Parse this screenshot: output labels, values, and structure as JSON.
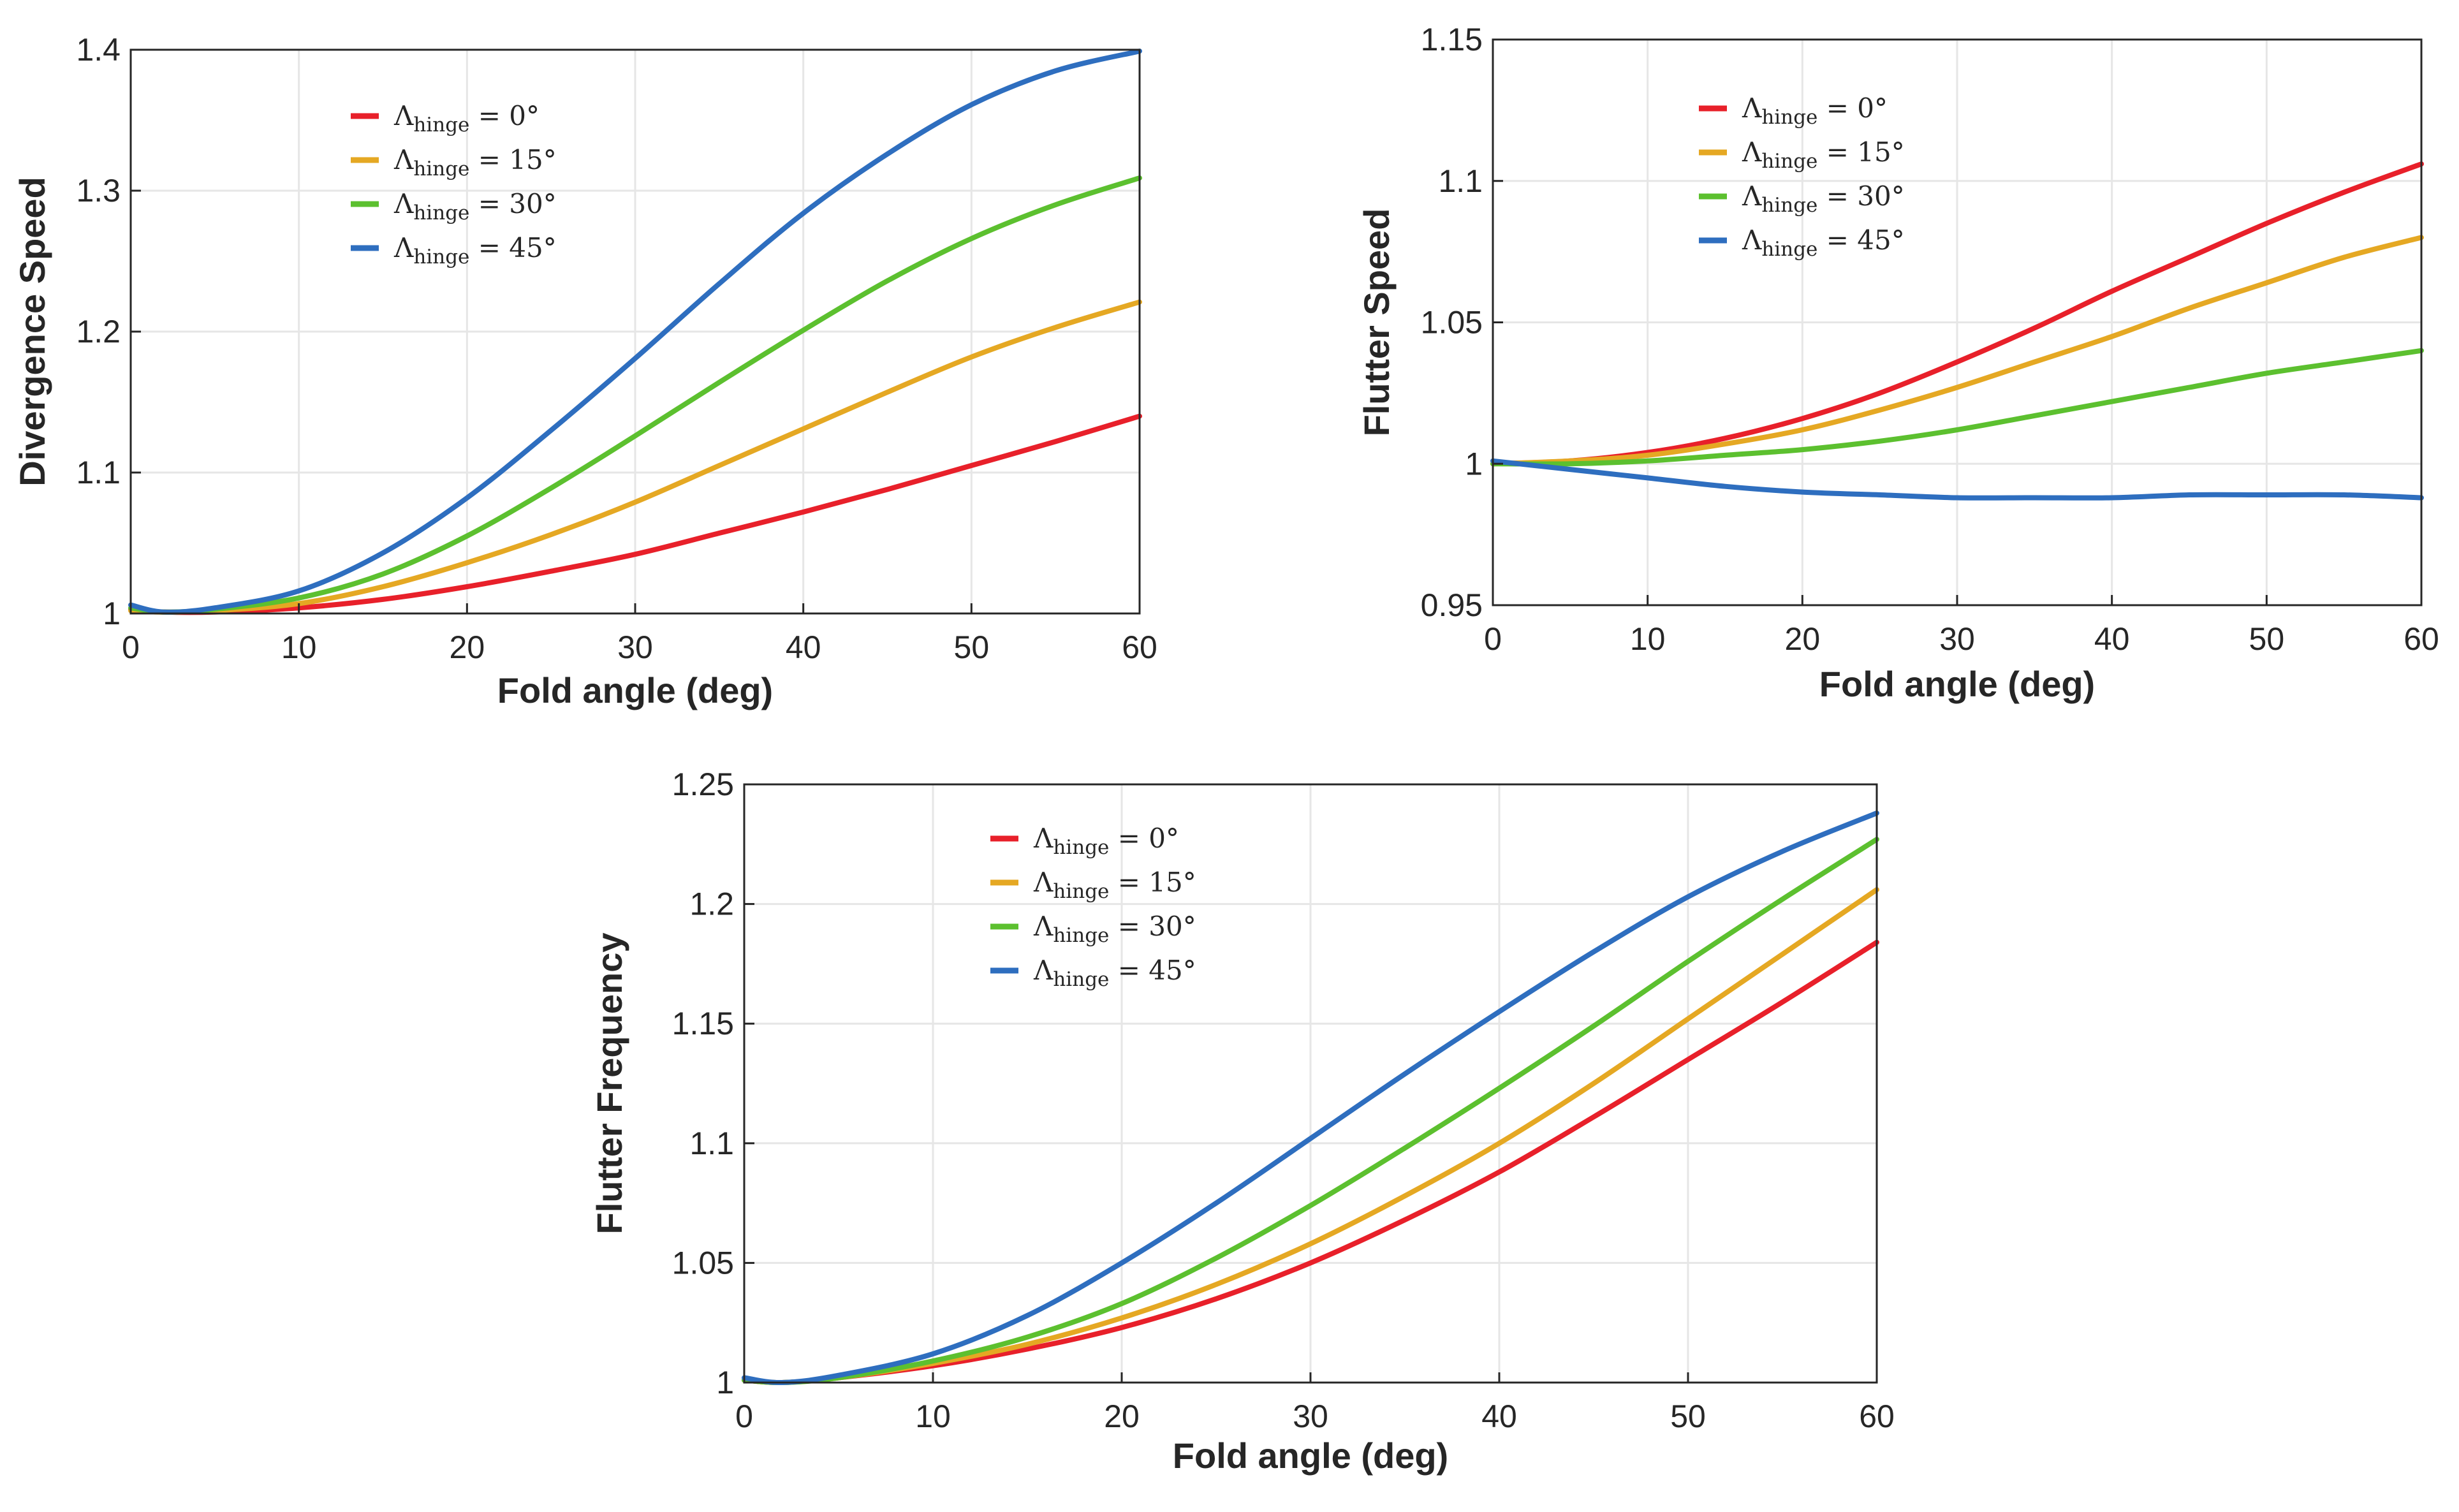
{
  "chart_data": [
    {
      "type": "line",
      "xlabel": "Fold angle (deg)",
      "ylabel": "Divergence Speed",
      "xlim": [
        0,
        60
      ],
      "ylim": [
        1,
        1.4
      ],
      "xticks": [
        0,
        10,
        20,
        30,
        40,
        50,
        60
      ],
      "yticks": [
        1,
        1.1,
        1.2,
        1.3,
        1.4
      ],
      "xtick_labels": [
        "0",
        "10",
        "20",
        "30",
        "40",
        "50",
        "60"
      ],
      "ytick_labels": [
        "1",
        "1.1",
        "1.2",
        "1.3",
        "1.4"
      ],
      "grid": true,
      "legend_position": "top-left",
      "x": [
        0,
        2,
        5,
        10,
        15,
        20,
        25,
        30,
        35,
        40,
        45,
        50,
        55,
        60
      ],
      "series": [
        {
          "name": "Λhinge = 0°",
          "name_main": "Λ",
          "name_sub": "hinge",
          "name_rest": " = 0°",
          "color": "#e8202a",
          "values": [
            1.003,
            1.001,
            1.001,
            1.004,
            1.01,
            1.019,
            1.03,
            1.042,
            1.057,
            1.072,
            1.088,
            1.105,
            1.122,
            1.14
          ]
        },
        {
          "name": "Λhinge = 15°",
          "name_main": "Λ",
          "name_sub": "hinge",
          "name_rest": " = 15°",
          "color": "#e5a823",
          "values": [
            1.002,
            1.001,
            1.002,
            1.007,
            1.019,
            1.036,
            1.056,
            1.079,
            1.105,
            1.131,
            1.157,
            1.182,
            1.203,
            1.221
          ]
        },
        {
          "name": "Λhinge = 30°",
          "name_main": "Λ",
          "name_sub": "hinge",
          "name_rest": " = 30°",
          "color": "#5cc02f",
          "values": [
            1.004,
            1.001,
            1.003,
            1.011,
            1.028,
            1.055,
            1.089,
            1.126,
            1.164,
            1.201,
            1.236,
            1.266,
            1.29,
            1.309
          ]
        },
        {
          "name": "Λhinge = 45°",
          "name_main": "Λ",
          "name_sub": "hinge",
          "name_rest": " = 45°",
          "color": "#2e6ebf",
          "values": [
            1.006,
            1.001,
            1.004,
            1.016,
            1.043,
            1.082,
            1.13,
            1.181,
            1.234,
            1.284,
            1.326,
            1.361,
            1.385,
            1.399
          ]
        }
      ]
    },
    {
      "type": "line",
      "xlabel": "Fold angle (deg)",
      "ylabel": "Flutter Speed",
      "xlim": [
        0,
        60
      ],
      "ylim": [
        0.95,
        1.15
      ],
      "xticks": [
        0,
        10,
        20,
        30,
        40,
        50,
        60
      ],
      "yticks": [
        0.95,
        1,
        1.05,
        1.1,
        1.15
      ],
      "xtick_labels": [
        "0",
        "10",
        "20",
        "30",
        "40",
        "50",
        "60"
      ],
      "ytick_labels": [
        "0.95",
        "1",
        "1.05",
        "1.1",
        "1.15"
      ],
      "grid": true,
      "legend_position": "top-left",
      "x": [
        0,
        5,
        10,
        15,
        20,
        25,
        30,
        35,
        40,
        45,
        50,
        55,
        60
      ],
      "series": [
        {
          "name": "Λhinge = 0°",
          "name_main": "Λ",
          "name_sub": "hinge",
          "name_rest": " = 0°",
          "color": "#e8202a",
          "values": [
            1.0,
            1.001,
            1.004,
            1.009,
            1.016,
            1.025,
            1.036,
            1.048,
            1.061,
            1.073,
            1.085,
            1.096,
            1.106
          ]
        },
        {
          "name": "Λhinge = 15°",
          "name_main": "Λ",
          "name_sub": "hinge",
          "name_rest": " = 15°",
          "color": "#e5a823",
          "values": [
            1.0,
            1.001,
            1.003,
            1.007,
            1.012,
            1.019,
            1.027,
            1.036,
            1.045,
            1.055,
            1.064,
            1.073,
            1.08
          ]
        },
        {
          "name": "Λhinge = 30°",
          "name_main": "Λ",
          "name_sub": "hinge",
          "name_rest": " = 30°",
          "color": "#5cc02f",
          "values": [
            1.0,
            1.0,
            1.001,
            1.003,
            1.005,
            1.008,
            1.012,
            1.017,
            1.022,
            1.027,
            1.032,
            1.036,
            1.04
          ]
        },
        {
          "name": "Λhinge = 45°",
          "name_main": "Λ",
          "name_sub": "hinge",
          "name_rest": " = 45°",
          "color": "#2e6ebf",
          "values": [
            1.001,
            0.998,
            0.995,
            0.992,
            0.99,
            0.989,
            0.988,
            0.988,
            0.988,
            0.989,
            0.989,
            0.989,
            0.988
          ]
        }
      ]
    },
    {
      "type": "line",
      "xlabel": "Fold angle (deg)",
      "ylabel": "Flutter Frequency",
      "xlim": [
        0,
        60
      ],
      "ylim": [
        1,
        1.25
      ],
      "xticks": [
        0,
        10,
        20,
        30,
        40,
        50,
        60
      ],
      "yticks": [
        1,
        1.05,
        1.1,
        1.15,
        1.2,
        1.25
      ],
      "xtick_labels": [
        "0",
        "10",
        "20",
        "30",
        "40",
        "50",
        "60"
      ],
      "ytick_labels": [
        "1",
        "1.05",
        "1.1",
        "1.15",
        "1.2",
        "1.25"
      ],
      "grid": true,
      "legend_position": "top-left",
      "x": [
        0,
        2,
        5,
        10,
        15,
        20,
        25,
        30,
        35,
        40,
        45,
        50,
        55,
        60
      ],
      "series": [
        {
          "name": "Λhinge = 0°",
          "name_main": "Λ",
          "name_sub": "hinge",
          "name_rest": " = 0°",
          "color": "#e8202a",
          "values": [
            1.001,
            1.0,
            1.002,
            1.007,
            1.014,
            1.023,
            1.035,
            1.05,
            1.068,
            1.088,
            1.111,
            1.135,
            1.159,
            1.184
          ]
        },
        {
          "name": "Λhinge = 15°",
          "name_main": "Λ",
          "name_sub": "hinge",
          "name_rest": " = 15°",
          "color": "#e5a823",
          "values": [
            1.001,
            1.0,
            1.002,
            1.008,
            1.016,
            1.027,
            1.041,
            1.058,
            1.078,
            1.1,
            1.125,
            1.152,
            1.179,
            1.206
          ]
        },
        {
          "name": "Λhinge = 30°",
          "name_main": "Λ",
          "name_sub": "hinge",
          "name_rest": " = 30°",
          "color": "#5cc02f",
          "values": [
            1.001,
            1.0,
            1.002,
            1.009,
            1.019,
            1.033,
            1.052,
            1.074,
            1.098,
            1.123,
            1.149,
            1.176,
            1.202,
            1.227
          ]
        },
        {
          "name": "Λhinge = 45°",
          "name_main": "Λ",
          "name_sub": "hinge",
          "name_rest": " = 45°",
          "color": "#2e6ebf",
          "values": [
            1.002,
            1.0,
            1.003,
            1.012,
            1.028,
            1.05,
            1.075,
            1.102,
            1.129,
            1.155,
            1.18,
            1.203,
            1.222,
            1.238
          ]
        }
      ]
    }
  ]
}
